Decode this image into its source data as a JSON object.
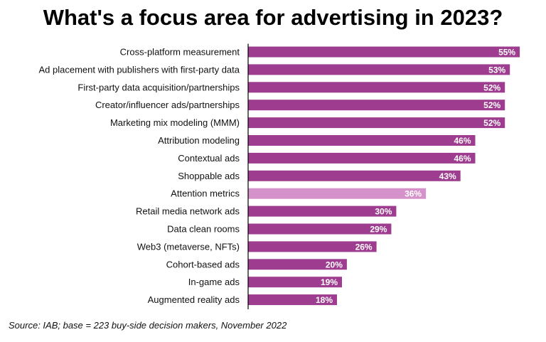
{
  "chart_data": {
    "type": "bar",
    "orientation": "horizontal",
    "title": "What's a focus area for advertising in 2023?",
    "categories": [
      "Cross-platform measurement",
      "Ad placement with publishers with first-party data",
      "First-party data acquisition/partnerships",
      "Creator/influencer ads/partnerships",
      "Marketing mix modeling (MMM)",
      "Attribution modeling",
      "Contextual ads",
      "Shoppable ads",
      "Attention metrics",
      "Retail media network ads",
      "Data clean rooms",
      "Web3 (metaverse, NFTs)",
      "Cohort-based ads",
      "In-game ads",
      "Augmented reality ads"
    ],
    "values": [
      55,
      53,
      52,
      52,
      52,
      46,
      46,
      43,
      36,
      30,
      29,
      26,
      20,
      19,
      18
    ],
    "value_labels": [
      "55%",
      "53%",
      "52%",
      "52%",
      "52%",
      "46%",
      "46%",
      "43%",
      "36%",
      "30%",
      "29%",
      "26%",
      "20%",
      "19%",
      "18%"
    ],
    "highlight_index": 8,
    "colors": {
      "bar": "#9e3d8f",
      "highlight": "#d591c9",
      "axis": "#000000"
    },
    "xlim": [
      0,
      56
    ],
    "xlabel": "",
    "ylabel": "",
    "grid": false,
    "legend": "none"
  },
  "source": "Source: IAB; base = 223 buy-side decision makers, November 2022"
}
